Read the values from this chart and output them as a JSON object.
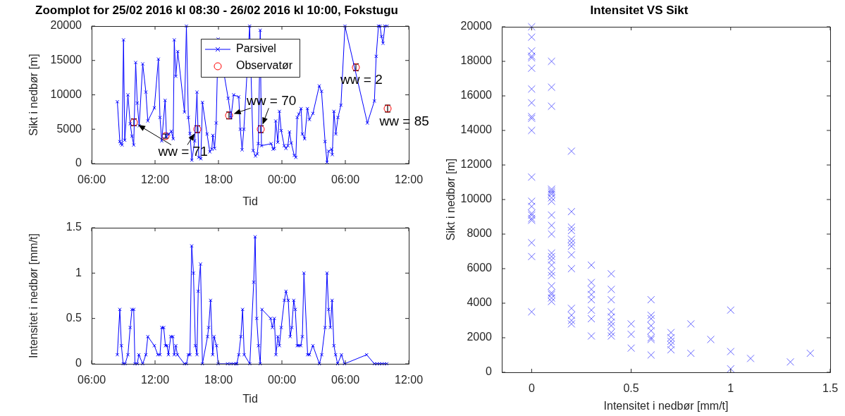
{
  "chart_data": [
    {
      "type": "line",
      "title": "Zoomplot for 25/02 2016 kl 08:30 - 26/02 2016 kl 10:00, Fokstugu",
      "xlabel": "Tid",
      "ylabel": "Sikt i nedbør [m]",
      "xlim": [
        "2016-02-25T06:00",
        "2016-02-26T12:00"
      ],
      "xticks": [
        {
          "value": "2016-02-25T06:00",
          "label": "06:00"
        },
        {
          "value": "2016-02-25T12:00",
          "label": "12:00"
        },
        {
          "value": "2016-02-25T18:00",
          "label": "18:00"
        },
        {
          "value": "2016-02-26T00:00",
          "label": "00:00"
        },
        {
          "value": "2016-02-26T06:00",
          "label": "06:00"
        },
        {
          "value": "2016-02-26T12:00",
          "label": "12:00"
        }
      ],
      "ylim": [
        0,
        20000
      ],
      "yticks": [
        0,
        5000,
        10000,
        15000,
        20000
      ],
      "legend": "top",
      "series": [
        {
          "name": "Parsivel",
          "color": "#0000ff",
          "marker": "cross",
          "x": [
            "2016-02-25T08:26",
            "2016-02-25T08:40",
            "2016-02-25T08:46",
            "2016-02-25T08:53",
            "2016-02-25T09:01",
            "2016-02-25T09:08",
            "2016-02-25T09:26",
            "2016-02-25T09:39",
            "2016-02-25T09:49",
            "2016-02-25T09:59",
            "2016-02-25T10:10",
            "2016-02-25T10:19",
            "2016-02-25T10:30",
            "2016-02-25T10:50",
            "2016-02-25T11:08",
            "2016-02-25T11:19",
            "2016-02-25T11:56",
            "2016-02-25T12:19",
            "2016-02-25T12:28",
            "2016-02-25T12:38",
            "2016-02-25T12:57",
            "2016-02-25T13:05",
            "2016-02-25T13:19",
            "2016-02-25T13:32",
            "2016-02-25T13:43",
            "2016-02-25T13:49",
            "2016-02-25T13:58",
            "2016-02-25T14:09",
            "2016-02-25T14:47",
            "2016-02-25T14:58",
            "2016-02-25T15:09",
            "2016-02-25T15:18",
            "2016-02-25T15:29",
            "2016-02-25T15:45",
            "2016-02-25T15:58",
            "2016-02-25T16:08",
            "2016-02-25T16:20",
            "2016-02-25T16:29",
            "2016-02-25T16:55",
            "2016-02-25T17:11",
            "2016-02-25T17:22",
            "2016-02-25T17:28",
            "2016-02-25T17:38",
            "2016-02-25T17:47",
            "2016-02-25T17:58",
            "2016-02-25T18:55",
            "2016-02-25T19:11",
            "2016-02-25T19:26",
            "2016-02-25T19:55",
            "2016-02-25T20:04",
            "2016-02-25T20:14",
            "2016-02-25T20:24",
            "2016-02-25T20:57",
            "2016-02-25T21:17",
            "2016-02-25T21:30",
            "2016-02-25T21:40",
            "2016-02-25T21:46",
            "2016-02-25T21:57",
            "2016-02-25T22:04",
            "2016-02-25T22:59",
            "2016-02-25T23:10",
            "2016-02-25T23:17",
            "2016-02-25T23:25",
            "2016-02-25T23:37",
            "2016-02-25T23:46",
            "2016-02-25T23:56",
            "2016-02-26T00:13",
            "2016-02-26T00:23",
            "2016-02-26T00:34",
            "2016-02-26T00:43",
            "2016-02-26T00:53",
            "2016-02-26T01:10",
            "2016-02-26T01:19",
            "2016-02-26T01:27",
            "2016-02-26T01:36",
            "2016-02-26T01:49",
            "2016-02-26T01:56",
            "2016-02-26T02:09",
            "2016-02-26T02:25",
            "2016-02-26T02:36",
            "2016-02-26T02:56",
            "2016-02-26T03:32",
            "2016-02-26T03:45",
            "2016-02-26T04:05",
            "2016-02-26T04:16",
            "2016-02-26T04:25",
            "2016-02-26T04:42",
            "2016-02-26T04:46",
            "2016-02-26T04:55",
            "2016-02-26T05:06",
            "2016-02-26T05:18",
            "2016-02-26T05:35",
            "2016-02-26T05:58",
            "2016-02-26T08:05",
            "2016-02-26T08:45",
            "2016-02-26T08:55",
            "2016-02-26T09:08",
            "2016-02-26T09:17",
            "2016-02-26T09:25",
            "2016-02-26T09:34",
            "2016-02-26T09:44",
            "2016-02-26T09:57"
          ],
          "values": [
            9000,
            3200,
            2900,
            2700,
            18000,
            3400,
            10000,
            5800,
            4000,
            2700,
            14700,
            8800,
            5500,
            14500,
            10400,
            6200,
            8100,
            15200,
            6700,
            3300,
            9200,
            3900,
            4300,
            4700,
            3600,
            18000,
            12700,
            16300,
            7500,
            20000,
            6700,
            4400,
            500,
            3300,
            10400,
            900,
            700,
            8900,
            4300,
            1700,
            2100,
            4100,
            2200,
            5900,
            18100,
            9500,
            6700,
            10000,
            9700,
            5000,
            2000,
            5000,
            20000,
            1900,
            1100,
            1400,
            2900,
            19400,
            2600,
            2900,
            2100,
            2200,
            6200,
            3100,
            7600,
            4800,
            2600,
            2200,
            2600,
            4600,
            3000,
            1200,
            900,
            6700,
            7200,
            8000,
            4300,
            3600,
            8000,
            6400,
            7300,
            11300,
            10500,
            3200,
            200,
            1800,
            2100,
            1300,
            7600,
            4300,
            6700,
            8500,
            20000,
            5900,
            9100,
            15600,
            20000,
            20000,
            18500,
            17500,
            20000,
            20000
          ]
        },
        {
          "name": "Observatør",
          "type": "scatter",
          "color": "#ff0000",
          "marker": "circle",
          "x": [
            "2016-02-25T10:00",
            "2016-02-25T13:00",
            "2016-02-25T16:00",
            "2016-02-25T19:00",
            "2016-02-25T22:00",
            "2016-02-26T07:00",
            "2016-02-26T10:00"
          ],
          "values": [
            6000,
            4000,
            5000,
            7000,
            5000,
            14000,
            8000
          ],
          "errors": [
            500,
            300,
            500,
            500,
            500,
            500,
            500
          ]
        }
      ],
      "annotations": [
        {
          "text": "ww = 71",
          "x": "2016-02-25T10:00",
          "y": 6000
        },
        {
          "text": "ww = 70",
          "x": "2016-02-25T19:00",
          "y": 7000
        },
        "ww = 2",
        "ww = 85"
      ]
    },
    {
      "type": "line",
      "xlabel": "Tid",
      "ylabel": "Intensitet i nedbør [mm/t]",
      "xlim": [
        "2016-02-25T06:00",
        "2016-02-26T12:00"
      ],
      "xticks": [
        {
          "value": "2016-02-25T06:00",
          "label": "06:00"
        },
        {
          "value": "2016-02-25T12:00",
          "label": "12:00"
        },
        {
          "value": "2016-02-25T18:00",
          "label": "18:00"
        },
        {
          "value": "2016-02-26T00:00",
          "label": "00:00"
        },
        {
          "value": "2016-02-26T06:00",
          "label": "06:00"
        },
        {
          "value": "2016-02-26T12:00",
          "label": "12:00"
        }
      ],
      "ylim": [
        0,
        1.5
      ],
      "yticks": [
        0,
        0.5,
        1,
        1.5
      ],
      "marker": "cross",
      "series": [
        {
          "color": "#0000ff",
          "x": [
            "2016-02-25T08:26",
            "2016-02-25T08:40",
            "2016-02-25T08:49",
            "2016-02-25T08:59",
            "2016-02-25T09:10",
            "2016-02-25T09:26",
            "2016-02-25T09:39",
            "2016-02-25T09:49",
            "2016-02-25T09:59",
            "2016-02-25T10:06",
            "2016-02-25T10:19",
            "2016-02-25T10:28",
            "2016-02-25T10:50",
            "2016-02-25T11:08",
            "2016-02-25T11:19",
            "2016-02-25T11:56",
            "2016-02-25T12:16",
            "2016-02-25T12:28",
            "2016-02-25T12:38",
            "2016-02-25T12:49",
            "2016-02-25T12:59",
            "2016-02-25T13:08",
            "2016-02-25T13:16",
            "2016-02-25T13:29",
            "2016-02-25T13:41",
            "2016-02-25T13:49",
            "2016-02-25T13:58",
            "2016-02-25T14:07",
            "2016-02-25T14:47",
            "2016-02-25T14:58",
            "2016-02-25T15:09",
            "2016-02-25T15:18",
            "2016-02-25T15:28",
            "2016-02-25T15:38",
            "2016-02-25T15:49",
            "2016-02-25T15:58",
            "2016-02-25T16:05",
            "2016-02-25T16:18",
            "2016-02-25T16:29",
            "2016-02-25T16:58",
            "2016-02-25T17:04",
            "2016-02-25T17:15",
            "2016-02-25T17:27",
            "2016-02-25T17:35",
            "2016-02-25T17:49",
            "2016-02-25T17:58",
            "2016-02-25T18:51",
            "2016-02-25T19:11",
            "2016-02-25T19:24",
            "2016-02-25T19:37",
            "2016-02-25T19:44",
            "2016-02-25T19:55",
            "2016-02-25T20:07",
            "2016-02-25T20:17",
            "2016-02-25T20:26",
            "2016-02-25T20:58",
            "2016-02-25T21:20",
            "2016-02-25T21:28",
            "2016-02-25T21:37",
            "2016-02-25T21:47",
            "2016-02-25T21:57",
            "2016-02-25T22:07",
            "2016-02-25T22:56",
            "2016-02-25T23:06",
            "2016-02-25T23:17",
            "2016-02-25T23:26",
            "2016-02-25T23:37",
            "2016-02-25T23:46",
            "2016-02-25T23:56",
            "2016-02-26T00:14",
            "2016-02-26T00:23",
            "2016-02-26T00:36",
            "2016-02-26T00:47",
            "2016-02-26T00:56",
            "2016-02-26T01:07",
            "2016-02-26T01:16",
            "2016-02-26T01:27",
            "2016-02-26T01:36",
            "2016-02-26T01:47",
            "2016-02-26T01:56",
            "2016-02-26T02:05",
            "2016-02-26T02:26",
            "2016-02-26T02:36",
            "2016-02-26T02:56",
            "2016-02-26T03:33",
            "2016-02-26T03:46",
            "2016-02-26T04:05",
            "2016-02-26T04:16",
            "2016-02-26T04:25",
            "2016-02-26T04:35",
            "2016-02-26T04:45",
            "2016-02-26T04:55",
            "2016-02-26T05:05",
            "2016-02-26T05:16",
            "2016-02-26T05:38",
            "2016-02-26T05:55",
            "2016-02-26T08:01",
            "2016-02-26T08:45",
            "2016-02-26T09:01",
            "2016-02-26T09:14",
            "2016-02-26T09:28",
            "2016-02-26T09:41",
            "2016-02-26T09:55"
          ],
          "values": [
            0.1,
            0.6,
            0.2,
            0,
            0,
            0.1,
            0.4,
            0.6,
            0.6,
            0,
            0,
            0.1,
            0,
            0.1,
            0.3,
            0.2,
            0.1,
            0.1,
            0.4,
            0.4,
            0.2,
            0.2,
            0.1,
            0.3,
            0.3,
            0.1,
            0.2,
            0.1,
            0,
            0,
            0.1,
            0.1,
            1.3,
            1,
            0.2,
            0.1,
            0.8,
            1.1,
            0,
            0.3,
            0.4,
            0.7,
            0.1,
            0.3,
            0.2,
            0,
            0,
            0,
            0,
            0,
            0,
            0.1,
            0.3,
            0.6,
            0.1,
            0,
            0.9,
            1.4,
            0.5,
            0.2,
            0,
            0.6,
            0.5,
            0.4,
            0.5,
            0.1,
            0.3,
            0.2,
            0.4,
            0.7,
            0.8,
            0.7,
            0.3,
            0.4,
            0.7,
            0.6,
            0.2,
            0.2,
            0.2,
            0.3,
            1,
            0.1,
            0.1,
            0.2,
            0,
            0.1,
            0.4,
            1,
            0.6,
            0.4,
            0.7,
            0.2,
            0.1,
            0,
            0.1,
            0,
            0.1,
            0,
            0,
            0,
            0,
            0,
            0
          ]
        }
      ]
    },
    {
      "type": "scatter",
      "title": "Intensitet VS Sikt",
      "xlabel": "Intensitet i nedbør [mm/t]",
      "ylabel": "Sikt i nedbør [m]",
      "xlim": [
        -0.15,
        1.5
      ],
      "xticks": [
        0,
        0.5,
        1,
        1.5
      ],
      "ylim": [
        0,
        20000
      ],
      "yticks": [
        0,
        2000,
        4000,
        6000,
        8000,
        10000,
        12000,
        14000,
        16000,
        18000,
        20000
      ],
      "marker": "cross",
      "series": [
        {
          "color": "#6666ff",
          "x": [
            0,
            0,
            0,
            0,
            0,
            0,
            0,
            0,
            0,
            0,
            0,
            0,
            0,
            0,
            0,
            0,
            0,
            0,
            0,
            0,
            0,
            0.1,
            0.1,
            0.1,
            0.1,
            0.1,
            0.1,
            0.1,
            0.1,
            0.1,
            0.1,
            0.1,
            0.1,
            0.1,
            0.1,
            0.1,
            0.1,
            0.1,
            0.1,
            0.1,
            0.1,
            0.1,
            0.1,
            0.1,
            0.2,
            0.2,
            0.2,
            0.2,
            0.2,
            0.2,
            0.2,
            0.2,
            0.2,
            0.2,
            0.2,
            0.2,
            0.2,
            0.3,
            0.3,
            0.3,
            0.3,
            0.3,
            0.3,
            0.3,
            0.3,
            0.4,
            0.4,
            0.4,
            0.4,
            0.4,
            0.4,
            0.4,
            0.4,
            0.4,
            0.5,
            0.5,
            0.5,
            0.6,
            0.6,
            0.6,
            0.6,
            0.6,
            0.6,
            0.6,
            0.6,
            0.7,
            0.7,
            0.7,
            0.7,
            0.7,
            0.8,
            0.8,
            0.9,
            1,
            1,
            1,
            1.1,
            1.3,
            1.4
          ],
          "values": [
            20000,
            19400,
            18600,
            18300,
            18200,
            17600,
            16400,
            15600,
            14800,
            14700,
            14000,
            11300,
            9900,
            9600,
            9200,
            9100,
            8900,
            8800,
            7500,
            6700,
            3500,
            18000,
            16500,
            15400,
            10600,
            10500,
            10400,
            10300,
            10100,
            9900,
            9100,
            8500,
            8000,
            6900,
            6700,
            6500,
            6200,
            5800,
            5600,
            5000,
            4600,
            4500,
            4300,
            4100,
            12800,
            9300,
            8400,
            8200,
            7700,
            7500,
            7300,
            6800,
            6000,
            3700,
            3300,
            3000,
            2800,
            6200,
            5200,
            4800,
            4500,
            4200,
            3600,
            3100,
            2100,
            5700,
            4800,
            4200,
            3500,
            3200,
            2900,
            2700,
            2300,
            2100,
            2800,
            2200,
            1400,
            4200,
            3300,
            3100,
            2700,
            2400,
            2000,
            1900,
            1000,
            2300,
            2000,
            1800,
            1600,
            1300,
            2800,
            1100,
            1900,
            3600,
            1200,
            200,
            800,
            600,
            1100
          ]
        }
      ]
    }
  ]
}
